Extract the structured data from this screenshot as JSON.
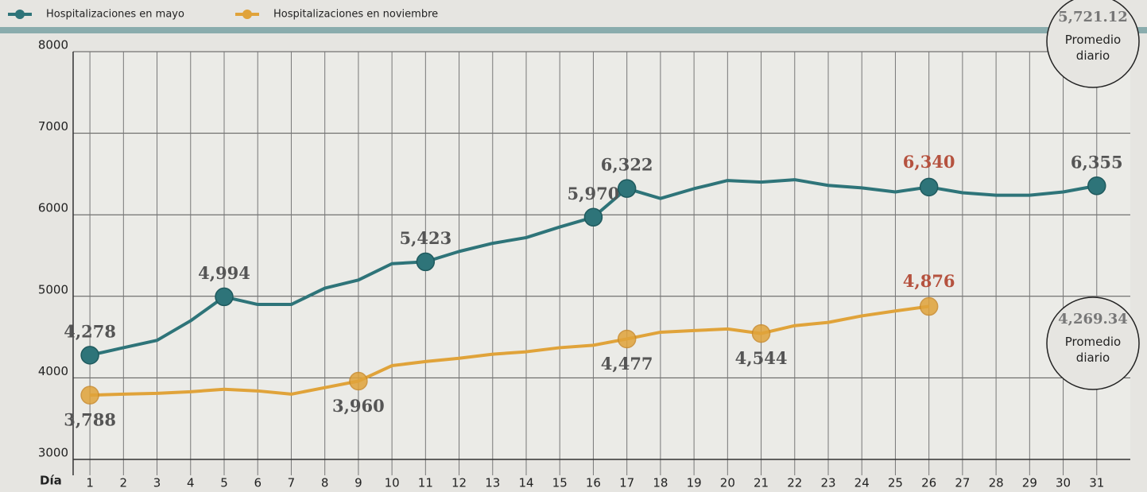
{
  "chart_data": {
    "type": "line",
    "x_label": "Día",
    "x": [
      1,
      2,
      3,
      4,
      5,
      6,
      7,
      8,
      9,
      10,
      11,
      12,
      13,
      14,
      15,
      16,
      17,
      18,
      19,
      20,
      21,
      22,
      23,
      24,
      25,
      26,
      27,
      28,
      29,
      30,
      31
    ],
    "xlim": [
      0.5,
      32
    ],
    "xticks": [
      1,
      2,
      3,
      4,
      5,
      6,
      7,
      8,
      9,
      10,
      11,
      12,
      13,
      14,
      15,
      16,
      17,
      18,
      19,
      20,
      21,
      22,
      23,
      24,
      25,
      26,
      27,
      28,
      29,
      30,
      31
    ],
    "ylim": [
      3000,
      8000
    ],
    "yticks": [
      3000,
      4000,
      5000,
      6000,
      7000,
      8000
    ],
    "grid": true,
    "legend": "top-left",
    "highlight_x": 26,
    "highlight_color": "#b5523f",
    "series": [
      {
        "name": "Hospitalizaciones en mayo",
        "color": "#2e7479",
        "values": [
          4278,
          4370,
          4460,
          4700,
          4994,
          4900,
          4900,
          5100,
          5200,
          5400,
          5423,
          5550,
          5650,
          5720,
          5850,
          5970,
          6322,
          6200,
          6320,
          6420,
          6400,
          6430,
          6360,
          6330,
          6280,
          6340,
          6270,
          6240,
          6240,
          6280,
          6355
        ],
        "value_labels": [
          "4,278",
          null,
          null,
          null,
          "4,994",
          null,
          null,
          null,
          null,
          null,
          "5,423",
          null,
          null,
          null,
          null,
          "5,970",
          "6,322",
          null,
          null,
          null,
          null,
          null,
          null,
          null,
          null,
          "6,340",
          null,
          null,
          null,
          null,
          "6,355"
        ]
      },
      {
        "name": "Hospitalizaciones en noviembre",
        "color": "#e0a33a",
        "values": [
          3788,
          3800,
          3810,
          3830,
          3860,
          3840,
          3800,
          3880,
          3960,
          4150,
          4200,
          4240,
          4290,
          4320,
          4370,
          4400,
          4477,
          4560,
          4580,
          4600,
          4544,
          4640,
          4680,
          4760,
          4820,
          4876,
          null,
          null,
          null,
          null,
          null
        ],
        "value_labels": [
          "3,788",
          null,
          null,
          null,
          null,
          null,
          null,
          null,
          "3,960",
          null,
          null,
          null,
          null,
          null,
          null,
          null,
          "4,477",
          null,
          null,
          null,
          "4,544",
          null,
          null,
          null,
          null,
          "4,876",
          null,
          null,
          null,
          null,
          null
        ]
      }
    ],
    "annotations": [
      {
        "value": 5721.12,
        "label": "5,721.12",
        "text": "Promedio diario"
      },
      {
        "value": 4269.34,
        "label": "4,269.34",
        "text": "Promedio diario"
      }
    ]
  }
}
